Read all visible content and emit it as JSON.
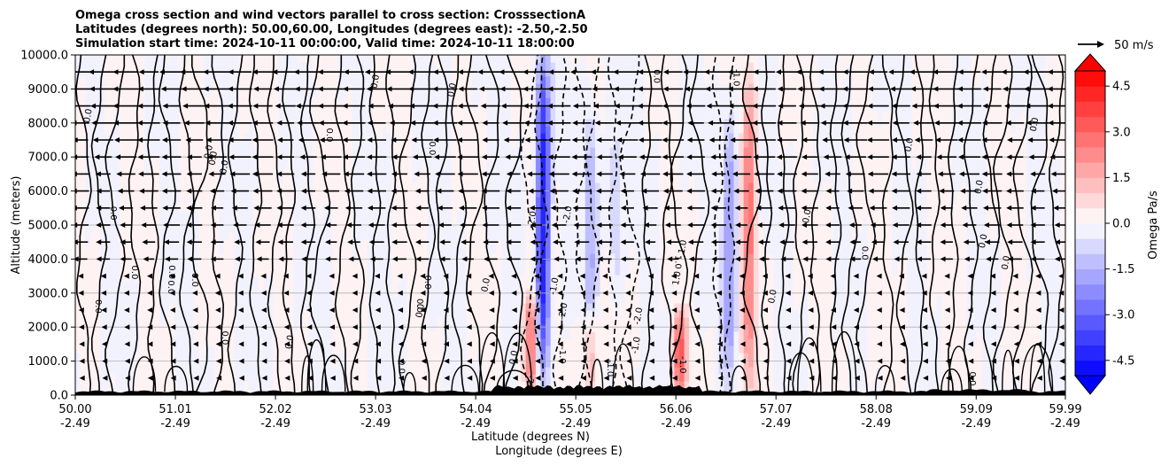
{
  "chart_data": {
    "type": "heatmap",
    "title_lines": [
      "Omega cross section and wind vectors parallel to cross section: CrosssectionA",
      "Latitudes (degrees north): 50.00,60.00, Longitudes (degrees east): -2.50,-2.50",
      "Simulation start time: 2024-10-11 00:00:00, Valid time: 2024-10-11 18:00:00"
    ],
    "xlabel_lat": "Latitude (degrees N)",
    "xlabel_lon": "Longitude (degrees E)",
    "ylabel": "Altitude (meters)",
    "ylim": [
      0,
      10000
    ],
    "y_ticks": [
      "0.0",
      "1000.0",
      "2000.0",
      "3000.0",
      "4000.0",
      "5000.0",
      "6000.0",
      "7000.0",
      "8000.0",
      "9000.0",
      "10000.0"
    ],
    "x_ticks_lat": [
      "50.00",
      "51.01",
      "52.02",
      "53.03",
      "54.04",
      "55.05",
      "56.06",
      "57.07",
      "58.08",
      "59.09",
      "59.99"
    ],
    "x_ticks_lon": [
      "-2.49",
      "-2.49",
      "-2.49",
      "-2.49",
      "-2.49",
      "-2.49",
      "-2.49",
      "-2.49",
      "-2.49",
      "-2.49",
      "-2.49"
    ],
    "grid": "horizontal",
    "colorbar": {
      "label": "Omega Pa/s",
      "range": [
        -5.0,
        5.0
      ],
      "ticks": [
        "-4.5",
        "-3.0",
        "-1.5",
        "0.0",
        "1.5",
        "3.0",
        "4.5"
      ],
      "extend": "both",
      "colormap": "bwr"
    },
    "quiver_key": {
      "label": "50 m/s"
    },
    "contour_labels": [
      "0.0",
      "-1.0",
      "1.0",
      "-2.0",
      "2.0"
    ],
    "omega_features": [
      {
        "lat": 54.72,
        "alt_from": 500,
        "alt_to": 10000,
        "omega": -4.5
      },
      {
        "lat": 55.2,
        "alt_from": 2000,
        "alt_to": 8500,
        "omega": -1.5
      },
      {
        "lat": 55.45,
        "alt_from": 3000,
        "alt_to": 8000,
        "omega": -1.0
      },
      {
        "lat": 56.6,
        "alt_from": 500,
        "alt_to": 8500,
        "omega": -2.0
      },
      {
        "lat": 54.6,
        "alt_from": 0,
        "alt_to": 3000,
        "omega": 3.0
      },
      {
        "lat": 56.1,
        "alt_from": 0,
        "alt_to": 2500,
        "omega": 3.0
      },
      {
        "lat": 56.8,
        "alt_from": 0,
        "alt_to": 9500,
        "omega": 2.5
      },
      {
        "lat": 55.2,
        "alt_from": 0,
        "alt_to": 2500,
        "omega": 1.5
      }
    ]
  }
}
